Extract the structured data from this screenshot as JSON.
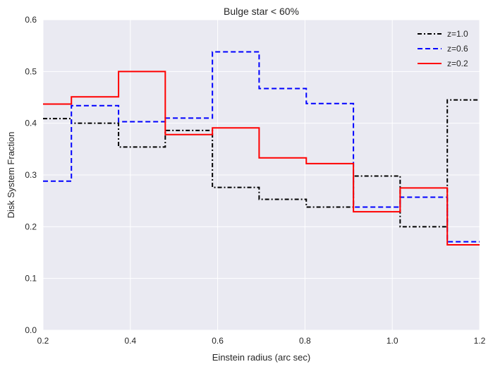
{
  "chart_data": {
    "type": "line",
    "step": "post",
    "title": "Bulge star < 60%",
    "xlabel": "Einstein radius (arc sec)",
    "ylabel": "Disk System Fraction",
    "xlim": [
      0.2,
      1.2
    ],
    "ylim": [
      0.0,
      0.6
    ],
    "xticks": [
      "0.2",
      "0.4",
      "0.6",
      "0.8",
      "1.0",
      "1.2"
    ],
    "yticks": [
      "0.0",
      "0.1",
      "0.2",
      "0.3",
      "0.4",
      "0.5",
      "0.6"
    ],
    "grid": true,
    "legend_position": "top-right",
    "background": "#EAEAF2",
    "bin_edges": [
      0.2,
      0.265,
      0.373,
      0.48,
      0.588,
      0.695,
      0.803,
      0.911,
      1.018,
      1.126,
      1.2
    ],
    "series": [
      {
        "name": "z=1.0",
        "color": "#000000",
        "dash": "dashdot",
        "values": [
          0.409,
          0.4,
          0.354,
          0.386,
          0.276,
          0.253,
          0.238,
          0.298,
          0.2,
          0.445
        ]
      },
      {
        "name": "z=0.6",
        "color": "#0000FF",
        "dash": "dashed",
        "values": [
          0.288,
          0.434,
          0.403,
          0.41,
          0.538,
          0.467,
          0.438,
          0.238,
          0.257,
          0.171
        ]
      },
      {
        "name": "z=0.2",
        "color": "#FF0000",
        "dash": "solid",
        "values": [
          0.437,
          0.451,
          0.5,
          0.378,
          0.391,
          0.333,
          0.322,
          0.229,
          0.275,
          0.165
        ]
      }
    ]
  }
}
